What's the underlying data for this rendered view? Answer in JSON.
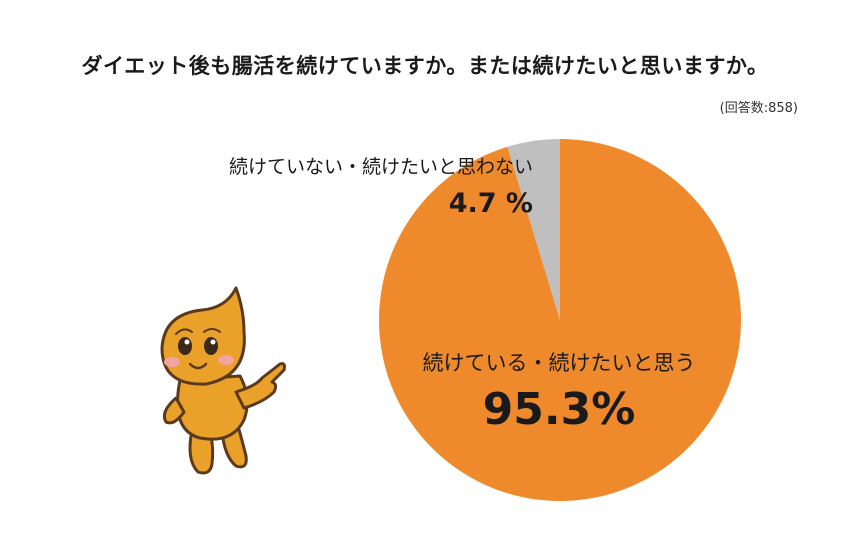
{
  "title": "ダイエット後も腸活を続けていますか。または続けたいと思いますか。",
  "respondents": "(回答数:858)",
  "colors": {
    "major": "#EE8A2B",
    "minor": "#BFBFBF",
    "mascot": "#E9A12A",
    "outline": "#5a3a1a"
  },
  "mascot": {
    "icon": "mascot-character"
  },
  "chart_data": {
    "type": "pie",
    "title": "ダイエット後も腸活を続けていますか。または続けたいと思いますか。",
    "slices": [
      {
        "label": "続けている・続けたいと思う",
        "value": 95.3,
        "value_label": "95.3%",
        "color": "#EE8A2B"
      },
      {
        "label": "続けていない・続けたいと思わない",
        "value": 4.7,
        "value_label": "4.7 %",
        "color": "#BFBFBF"
      }
    ],
    "start": "12 o'clock",
    "direction": "clockwise"
  }
}
